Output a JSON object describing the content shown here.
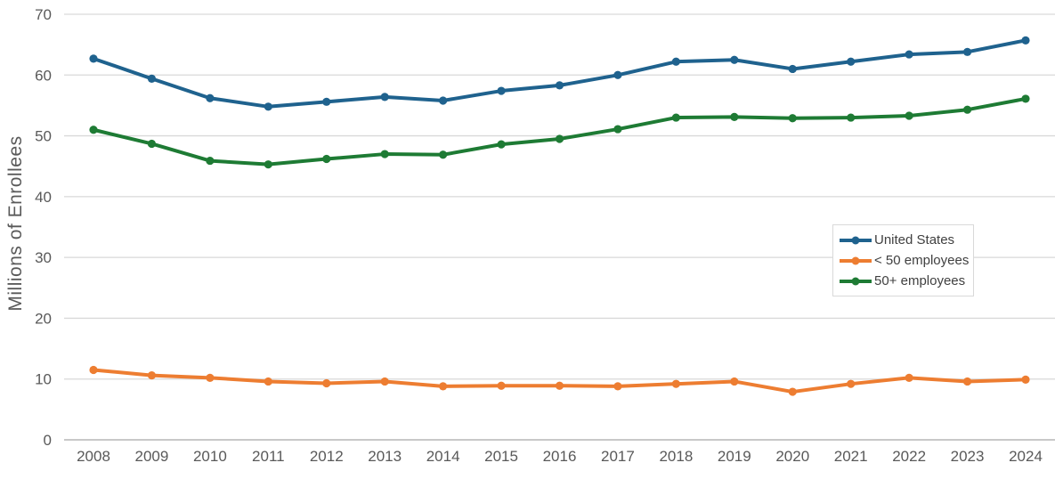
{
  "chart_data": {
    "type": "line",
    "title": "",
    "xlabel": "",
    "ylabel": "Millions of Enrollees",
    "ylim": [
      0,
      70
    ],
    "yticks": [
      0,
      10,
      20,
      30,
      40,
      50,
      60,
      70
    ],
    "grid": "horizontal",
    "legend_position": "middle-right",
    "categories": [
      "2008",
      "2009",
      "2010",
      "2011",
      "2012",
      "2013",
      "2014",
      "2015",
      "2016",
      "2017",
      "2018",
      "2019",
      "2020",
      "2021",
      "2022",
      "2023",
      "2024"
    ],
    "series": [
      {
        "name": "United States",
        "color": "#1f628e",
        "values": [
          62.7,
          59.4,
          56.2,
          54.8,
          55.6,
          56.4,
          55.8,
          57.4,
          58.3,
          60.0,
          62.2,
          62.5,
          61.0,
          62.2,
          63.4,
          63.8,
          65.7
        ]
      },
      {
        "name": "< 50 employees",
        "color": "#ed7d31",
        "values": [
          11.5,
          10.6,
          10.2,
          9.6,
          9.3,
          9.6,
          8.8,
          8.9,
          8.9,
          8.8,
          9.2,
          9.6,
          7.9,
          9.2,
          10.2,
          9.6,
          9.9
        ]
      },
      {
        "name": "50+ employees",
        "color": "#1e7b34",
        "values": [
          51.0,
          48.7,
          45.9,
          45.3,
          46.2,
          47.0,
          46.9,
          48.6,
          49.5,
          51.1,
          53.0,
          53.1,
          52.9,
          53.0,
          53.3,
          54.3,
          56.1
        ]
      }
    ],
    "style": {
      "gridline_color": "#d9d9d9",
      "baseline_color": "#a6a6a6",
      "tick_label_color": "#595959",
      "axis_title_color": "#595959",
      "legend_text_color": "#404040",
      "legend_border_color": "#d9d9d9"
    }
  }
}
